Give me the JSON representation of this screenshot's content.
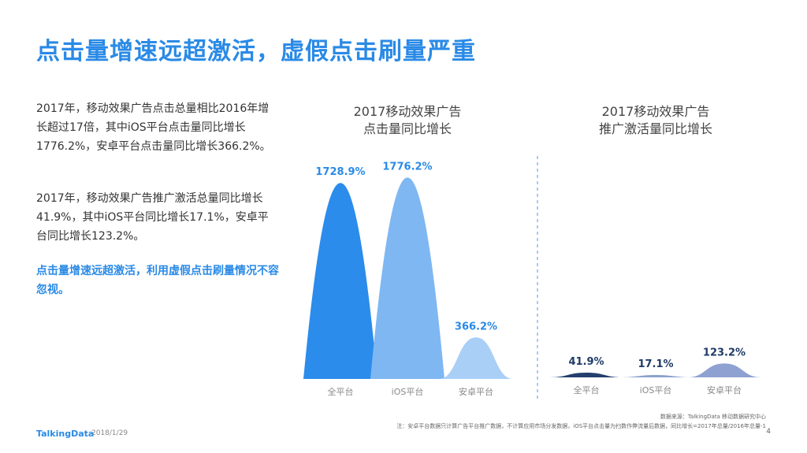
{
  "title": "点击量增速远超激活，虚假点击刷量严重",
  "paragraphs": [
    "2017年，移动效果广告点击总量相比2016年增长超过17倍，其中iOS平台点击量同比增长1776.2%，安卓平台点击量同比增长366.2%。",
    "2017年，移动效果广告推广激活总量同比增长41.9%，其中iOS平台同比增长17.1%，安卓平台同比增长123.2%。",
    "点击量增速远超激活，利用虚假点击刷量情况不容忽视。"
  ],
  "chart_data": [
    {
      "type": "area",
      "title_lines": [
        "2017移动效果广告",
        "点击量同比增长"
      ],
      "categories": [
        "全平台",
        "iOS平台",
        "安卓平台"
      ],
      "values": [
        1728.9,
        1776.2,
        366.2
      ],
      "value_labels": [
        "1728.9%",
        "1776.2%",
        "366.2%"
      ],
      "colors": [
        "#2b8ceb",
        "#7fb7f2",
        "#a9cff7"
      ],
      "label_color": "#2a8ae6",
      "ylim": [
        0,
        1800
      ]
    },
    {
      "type": "area",
      "title_lines": [
        "2017移动效果广告",
        "推广激活量同比增长"
      ],
      "categories": [
        "全平台",
        "iOS平台",
        "安卓平台"
      ],
      "values": [
        41.9,
        17.1,
        123.2
      ],
      "value_labels": [
        "41.9%",
        "17.1%",
        "123.2%"
      ],
      "colors": [
        "#243e6e",
        "#8da3cc",
        "#8ea1d1"
      ],
      "label_color": "#1f3a66",
      "ylim": [
        0,
        1800
      ]
    }
  ],
  "footer": {
    "brand": "TalkingData",
    "date": "2018/1/29",
    "source": "数据来源：TalkingData 移动数据研究中心",
    "note": "注：安卓平台数据只计算广告平台推广数据，不计算应用市场分发数据，iOS平台点击量为扫数作弊流量后数据，同比增长=2017年总量/2016年总量-1",
    "page": "4"
  }
}
